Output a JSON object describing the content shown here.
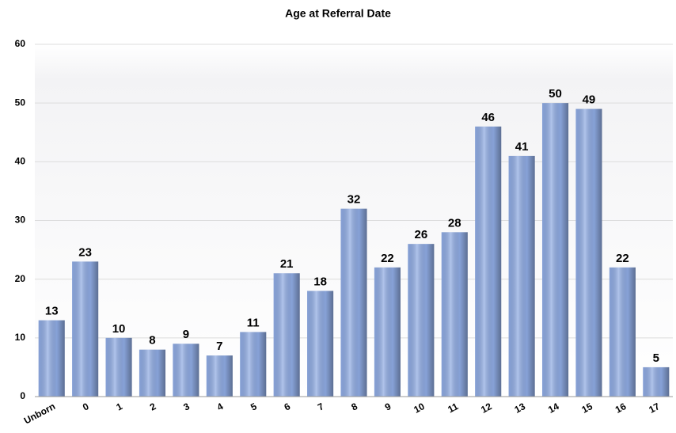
{
  "chart_data": {
    "type": "bar",
    "title": "Age at Referral Date",
    "categories": [
      "Unborn",
      "0",
      "1",
      "2",
      "3",
      "4",
      "5",
      "6",
      "7",
      "8",
      "9",
      "10",
      "11",
      "12",
      "13",
      "14",
      "15",
      "16",
      "17"
    ],
    "values": [
      13,
      23,
      10,
      8,
      9,
      7,
      11,
      21,
      18,
      32,
      22,
      26,
      28,
      46,
      41,
      50,
      49,
      22,
      5
    ],
    "color": "#8eaae2",
    "ylim": [
      0,
      60
    ],
    "yticks": [
      0,
      10,
      20,
      30,
      40,
      50,
      60
    ],
    "grid": true
  }
}
